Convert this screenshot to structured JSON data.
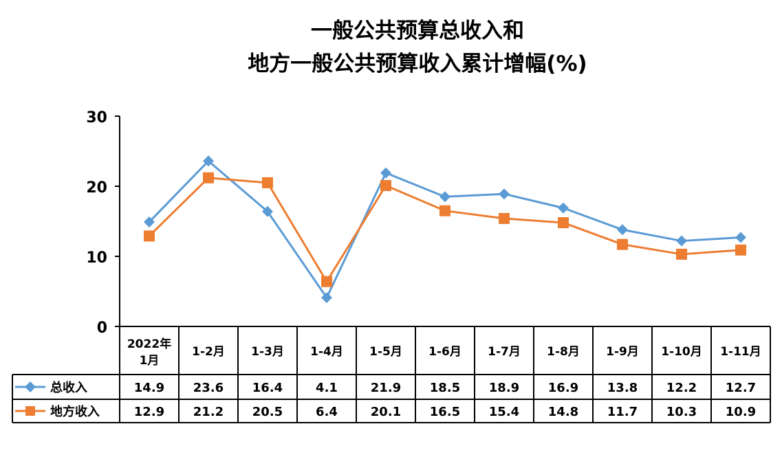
{
  "chart_data": {
    "type": "line",
    "title": "一般公共预算总收入和",
    "subtitle": "地方一般公共预算收入累计增幅(%)",
    "categories": [
      "2022年1月",
      "1-2月",
      "1-3月",
      "1-4月",
      "1-5月",
      "1-6月",
      "1-7月",
      "1-8月",
      "1-9月",
      "1-10月",
      "1-11月"
    ],
    "series": [
      {
        "name": "总收入",
        "color": "#5B9BD5",
        "marker": "diamond",
        "values": [
          14.9,
          23.6,
          16.4,
          4.1,
          21.9,
          18.5,
          18.9,
          16.9,
          13.8,
          12.2,
          12.7
        ],
        "labels": [
          "14.9",
          "23.6",
          "16.4",
          "4.1",
          "21.9",
          "18.5",
          "18.9",
          "16.9",
          "13.8",
          "12.2",
          "12.7"
        ]
      },
      {
        "name": "地方收入",
        "color": "#ED7D31",
        "marker": "square",
        "values": [
          12.9,
          21.2,
          20.5,
          6.4,
          20.1,
          16.5,
          15.4,
          14.8,
          11.7,
          10.3,
          10.9
        ],
        "labels": [
          "12.9",
          "21.2",
          "20.5",
          "6.4",
          "20.1",
          "16.5",
          "15.4",
          "14.8",
          "11.7",
          "10.3",
          "10.9"
        ]
      }
    ],
    "ylim": [
      0,
      30
    ],
    "yticks": [
      "0",
      "10",
      "20",
      "30"
    ],
    "grid": false,
    "legend": "data-table"
  }
}
